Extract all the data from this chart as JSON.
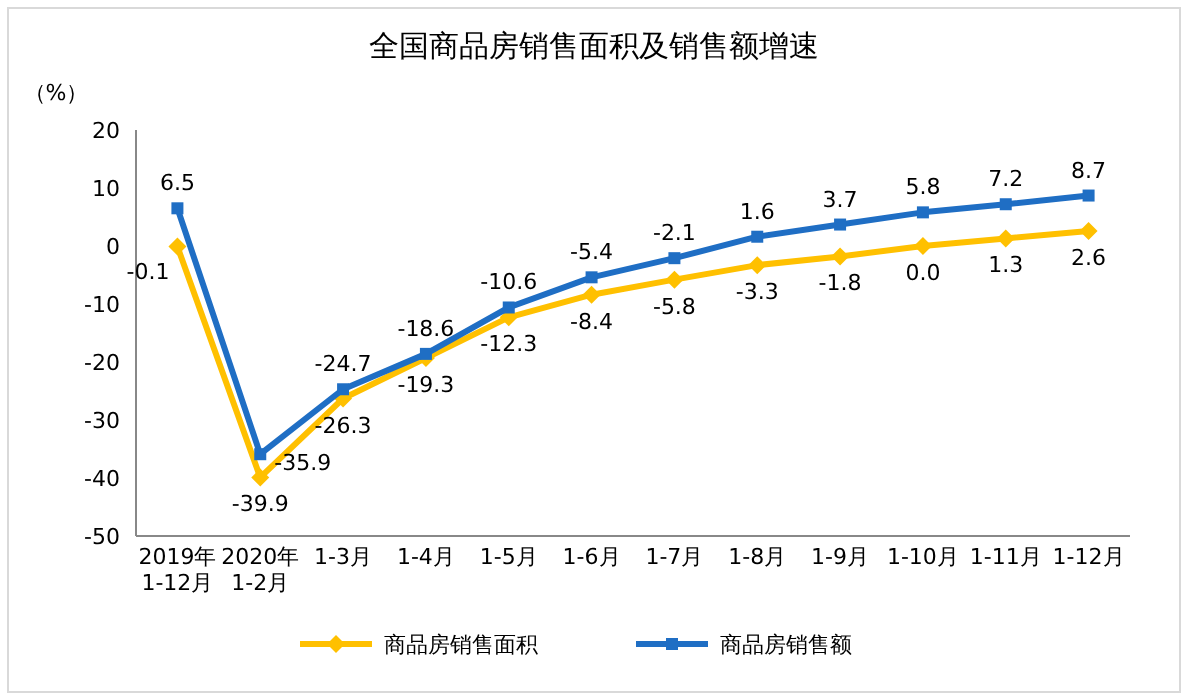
{
  "chart_data": {
    "type": "line",
    "title": "全国商品房销售面积及销售额增速",
    "ylabel": "（%）",
    "categories": [
      "2019年\n1-12月",
      "2020年\n1-2月",
      "1-3月",
      "1-4月",
      "1-5月",
      "1-6月",
      "1-7月",
      "1-8月",
      "1-9月",
      "1-10月",
      "1-11月",
      "1-12月"
    ],
    "series": [
      {
        "name": "商品房销售面积",
        "color": "#ffc000",
        "marker": "diamond",
        "values": [
          -0.1,
          -39.9,
          -26.3,
          -19.3,
          -12.3,
          -8.4,
          -5.8,
          -3.3,
          -1.8,
          0.0,
          1.3,
          2.6
        ],
        "value_labels": [
          "-0.1",
          "-39.9",
          "-26.3",
          "-19.3",
          "-12.3",
          "-8.4",
          "-5.8",
          "-3.3",
          "-1.8",
          "0.0",
          "1.3",
          "2.6"
        ]
      },
      {
        "name": "商品房销售额",
        "color": "#1f6ec4",
        "marker": "square",
        "values": [
          6.5,
          -35.9,
          -24.7,
          -18.6,
          -10.6,
          -5.4,
          -2.1,
          1.6,
          3.7,
          5.8,
          7.2,
          8.7
        ],
        "value_labels": [
          "6.5",
          "-35.9",
          "-24.7",
          "-18.6",
          "-10.6",
          "-5.4",
          "-2.1",
          "1.6",
          "3.7",
          "5.8",
          "7.2",
          "8.7"
        ]
      }
    ],
    "ylim": [
      -50,
      20
    ],
    "yticks": [
      -50,
      -40,
      -30,
      -20,
      -10,
      0,
      10,
      20
    ],
    "legend": "bottom"
  }
}
